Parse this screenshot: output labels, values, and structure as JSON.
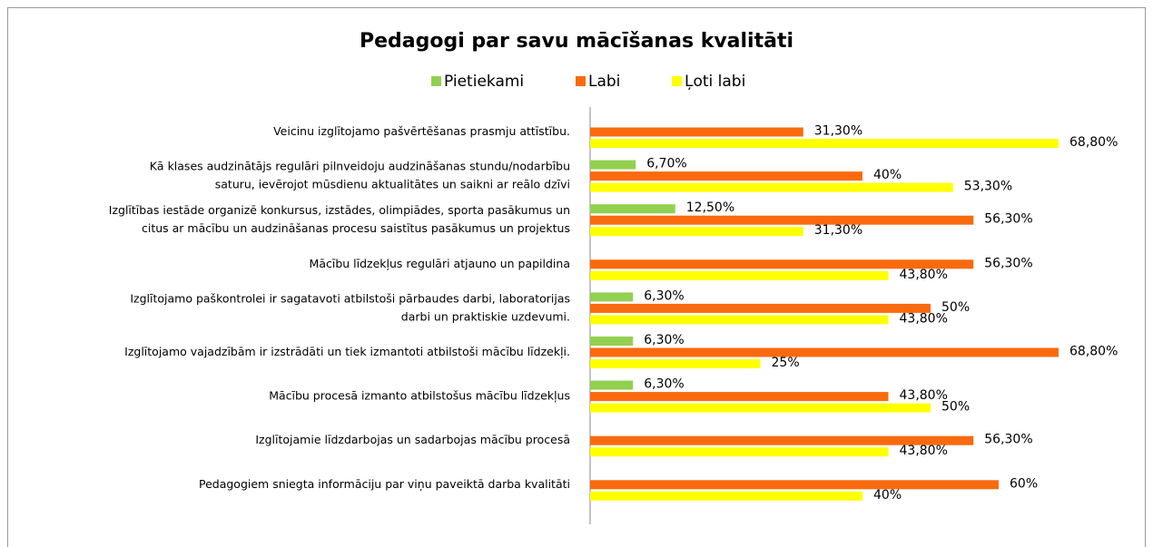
{
  "chart_data": {
    "type": "bar",
    "orientation": "horizontal",
    "title": "Pedagogi par savu mācīšanas kvalitāti",
    "categories": [
      [
        "Veicinu izglītojamo pašvērtēšanas prasmju attīstību."
      ],
      [
        "Kā klases audzinātājs regulāri pilnveidoju audzināšanas stundu/nodarbību",
        "saturu, ievērojot mūsdienu aktualitātes un saikni ar reālo dzīvi"
      ],
      [
        "Izglītības iestāde organizē konkursus, izstādes, olimpiādes, sporta pasākumus un",
        "citus ar mācību un audzināšanas procesu saistītus pasākumus un projektus"
      ],
      [
        "Mācību līdzekļus regulāri atjauno un papildina"
      ],
      [
        "Izglītojamo paškontrolei ir sagatavoti atbilstoši pārbaudes darbi, laboratorijas",
        "darbi un praktiskie uzdevumi."
      ],
      [
        "Izglītojamo vajadzībām ir izstrādāti un tiek izmantoti atbilstoši mācību līdzekļi."
      ],
      [
        "Mācību procesā izmanto atbilstošus mācību līdzekļus"
      ],
      [
        "Izglītojamie līdzdarbojas un sadarbojas mācību procesā"
      ],
      [
        "Pedagogiem sniegta informāciju par viņu paveiktā darba kvalitāti"
      ]
    ],
    "series": [
      {
        "name": "Pietiekami",
        "color": "#92d050",
        "values": [
          null,
          6.7,
          12.5,
          null,
          6.3,
          6.3,
          6.3,
          null,
          null
        ],
        "value_labels": [
          null,
          "6,70%",
          "12,50%",
          null,
          "6,30%",
          "6,30%",
          "6,30%",
          null,
          null
        ]
      },
      {
        "name": "Labi",
        "color": "#f96a0e",
        "values": [
          31.3,
          40,
          56.3,
          56.3,
          50,
          68.8,
          43.8,
          56.3,
          60
        ],
        "value_labels": [
          "31,30%",
          "40%",
          "56,30%",
          "56,30%",
          "50%",
          "68,80%",
          "43,80%",
          "56,30%",
          "60%"
        ]
      },
      {
        "name": "Ļoti labi",
        "color": "#ffff00",
        "values": [
          68.8,
          53.3,
          31.3,
          43.8,
          43.8,
          25,
          50,
          43.8,
          40
        ],
        "value_labels": [
          "68,80%",
          "53,30%",
          "31,30%",
          "43,80%",
          "43,80%",
          "25%",
          "50%",
          "43,80%",
          "40%"
        ]
      }
    ],
    "legend": "top"
  }
}
